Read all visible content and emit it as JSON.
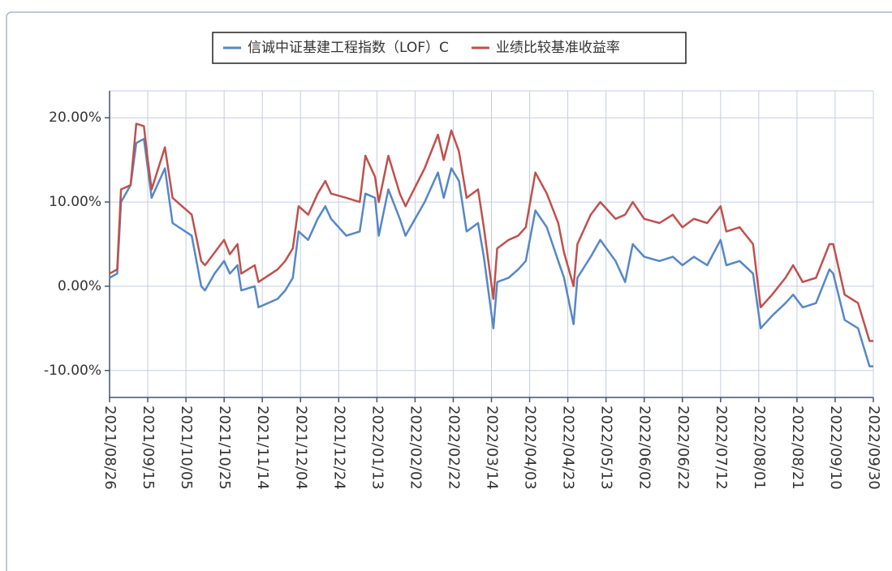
{
  "chart_data": {
    "type": "line",
    "x": [
      "2021/08/26",
      "2021/08/30",
      "2021/09/01",
      "2021/09/06",
      "2021/09/09",
      "2021/09/13",
      "2021/09/15",
      "2021/09/17",
      "2021/09/24",
      "2021/09/28",
      "2021/10/08",
      "2021/10/13",
      "2021/10/15",
      "2021/10/20",
      "2021/10/25",
      "2021/10/28",
      "2021/11/01",
      "2021/11/03",
      "2021/11/10",
      "2021/11/12",
      "2021/11/22",
      "2021/11/26",
      "2021/11/30",
      "2021/12/03",
      "2021/12/08",
      "2021/12/13",
      "2021/12/17",
      "2021/12/20",
      "2021/12/28",
      "2022/01/04",
      "2022/01/07",
      "2022/01/12",
      "2022/01/14",
      "2022/01/19",
      "2022/01/25",
      "2022/01/28",
      "2022/02/07",
      "2022/02/14",
      "2022/02/17",
      "2022/02/21",
      "2022/02/25",
      "2022/03/01",
      "2022/03/07",
      "2022/03/10",
      "2022/03/15",
      "2022/03/17",
      "2022/03/23",
      "2022/03/28",
      "2022/04/01",
      "2022/04/06",
      "2022/04/12",
      "2022/04/18",
      "2022/04/21",
      "2022/04/26",
      "2022/04/28",
      "2022/05/05",
      "2022/05/10",
      "2022/05/18",
      "2022/05/23",
      "2022/05/27",
      "2022/06/02",
      "2022/06/10",
      "2022/06/17",
      "2022/06/22",
      "2022/06/28",
      "2022/07/05",
      "2022/07/12",
      "2022/07/15",
      "2022/07/22",
      "2022/07/29",
      "2022/08/02",
      "2022/08/08",
      "2022/08/15",
      "2022/08/19",
      "2022/08/24",
      "2022/08/31",
      "2022/09/07",
      "2022/09/09",
      "2022/09/15",
      "2022/09/22",
      "2022/09/28",
      "2022/09/30"
    ],
    "series": [
      {
        "name": "信诚中证基建工程指数（LOF）C",
        "color": "#5687c6",
        "values": [
          1,
          1.5,
          10,
          12,
          17,
          17.5,
          14,
          10.5,
          14,
          7.5,
          6,
          0,
          -0.5,
          1.5,
          3,
          1.5,
          2.5,
          -0.5,
          0,
          -2.5,
          -1.5,
          -0.5,
          1,
          6.5,
          5.5,
          8,
          9.5,
          8,
          6,
          6.5,
          11,
          10.5,
          6,
          11.5,
          8,
          6,
          10,
          13.5,
          10.5,
          14,
          12.5,
          6.5,
          7.5,
          3.5,
          -5,
          0.5,
          1,
          2,
          3,
          9,
          7,
          3,
          1,
          -4.5,
          1,
          3.5,
          5.5,
          3,
          0.5,
          5,
          3.5,
          3,
          3.5,
          2.5,
          3.5,
          2.5,
          5.5,
          2.5,
          3,
          1.5,
          -5,
          -3.5,
          -2,
          -1,
          -2.5,
          -2,
          2,
          1.5,
          -4,
          -5,
          -9.5,
          -9.5
        ]
      },
      {
        "name": "业绩比较基准收益率",
        "color": "#c0504d",
        "values": [
          1.5,
          2,
          11.5,
          12,
          19.3,
          19,
          15,
          11.5,
          16.5,
          10.5,
          8.5,
          3,
          2.5,
          4,
          5.5,
          3.8,
          5,
          1.5,
          2.5,
          0.5,
          2,
          3,
          4.5,
          9.5,
          8.5,
          11,
          12.5,
          11,
          10.5,
          10,
          15.5,
          13,
          10,
          15.5,
          11,
          9.5,
          14,
          18,
          15,
          18.5,
          16,
          10.5,
          11.5,
          7,
          -1.5,
          4.5,
          5.5,
          6,
          7,
          13.5,
          11,
          7.5,
          4,
          0,
          5,
          8.5,
          10,
          8,
          8.5,
          10,
          8,
          7.5,
          8.5,
          7,
          8,
          7.5,
          9.5,
          6.5,
          7,
          5,
          -2.5,
          -1,
          1,
          2.5,
          0.5,
          1,
          5,
          5,
          -1,
          -2,
          -6.5,
          -6.5
        ]
      }
    ],
    "xlim": [
      "2021/08/26",
      "2022/09/30"
    ],
    "xticks": [
      "2021/08/26",
      "2021/09/15",
      "2021/10/05",
      "2021/10/25",
      "2021/11/14",
      "2021/12/04",
      "2021/12/24",
      "2022/01/13",
      "2022/02/02",
      "2022/02/22",
      "2022/03/14",
      "2022/04/03",
      "2022/04/23",
      "2022/05/13",
      "2022/06/02",
      "2022/06/22",
      "2022/07/12",
      "2022/08/01",
      "2022/08/21",
      "2022/09/10",
      "2022/09/30"
    ],
    "ylim": [
      -13.2,
      23.2
    ],
    "yticks": [
      {
        "value": -10,
        "label": "-10.00%"
      },
      {
        "value": 0,
        "label": "0.00%"
      },
      {
        "value": 10,
        "label": "10.00%"
      },
      {
        "value": 20,
        "label": "20.00%"
      }
    ],
    "grid": true
  }
}
